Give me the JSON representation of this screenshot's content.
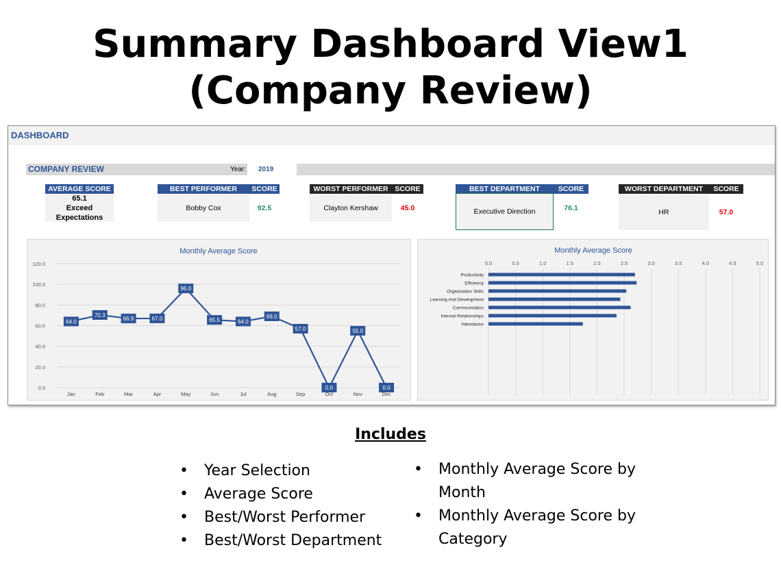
{
  "slide": {
    "title_line1": "Summary Dashboard View1",
    "title_line2": "(Company Review)"
  },
  "dashboard": {
    "title": "DASHBOARD",
    "section_title": "COMPANY REVIEW",
    "year_label": "Year:",
    "year_value": "2019",
    "kpis": {
      "average_score": {
        "label": "AVERAGE SCORE",
        "value": "65.1",
        "rating": "Exceed Expectations"
      },
      "best_performer": {
        "label": "BEST PERFORMER",
        "score_label": "SCORE",
        "name": "Bobby Cox",
        "score": "92.5"
      },
      "worst_performer": {
        "label": "WORST PERFORMER",
        "score_label": "SCORE",
        "name": "Clayton Kershaw",
        "score": "45.0"
      },
      "best_department": {
        "label": "BEST DEPARTMENT",
        "score_label": "SCORE",
        "name": "Executive Direction",
        "score": "76.1"
      },
      "worst_department": {
        "label": "WORST DEPARTMENT",
        "score_label": "SCORE",
        "name": "HR",
        "score": "57.0"
      }
    },
    "colors": {
      "accent": "#2f5597",
      "dark_header": "#262626",
      "good": "#1f8f6a",
      "bad": "#e00000",
      "panel": "#f2f2f2"
    }
  },
  "chart_data": [
    {
      "type": "line",
      "title": "Monthly Average Score",
      "categories": [
        "Jan",
        "Feb",
        "Mar",
        "Apr",
        "May",
        "Jun",
        "Jul",
        "Aug",
        "Sep",
        "Oct",
        "Nov",
        "Dec"
      ],
      "values": [
        64.0,
        70.3,
        66.9,
        67.0,
        96.0,
        65.5,
        64.0,
        69.0,
        57.0,
        0.0,
        55.0,
        0.0
      ],
      "value_labels": [
        "64.0",
        "70.3",
        "66.9",
        "67.0",
        "96.0",
        "65.5",
        "64.0",
        "69.0",
        "57.0",
        "0.0",
        "55.0",
        "0.0"
      ],
      "yticks": [
        "0.0",
        "20.0",
        "40.0",
        "60.0",
        "80.0",
        "100.0",
        "120.0"
      ],
      "ylim": [
        0,
        120
      ],
      "grid": true,
      "color": "#2f5597"
    },
    {
      "type": "bar",
      "orientation": "horizontal",
      "title": "Monthly Average Score",
      "categories": [
        "Productivity",
        "Efficiency",
        "Organization Skills",
        "Learning And Development",
        "Communication",
        "Internal Relationships",
        "Attendance"
      ],
      "values": [
        2.7,
        2.73,
        2.54,
        2.43,
        2.62,
        2.36,
        1.74
      ],
      "xticks": [
        "0.0",
        "0.5",
        "1.0",
        "1.5",
        "2.0",
        "2.5",
        "3.0",
        "3.5",
        "4.0",
        "4.5",
        "5.0"
      ],
      "xlim": [
        0,
        5
      ],
      "axis_position": "top",
      "grid": true,
      "color": "#2f5597"
    }
  ],
  "includes": {
    "heading": "Includes",
    "left": [
      "Year Selection",
      "Average Score",
      "Best/Worst Performer",
      "Best/Worst Department"
    ],
    "right": [
      "Monthly Average Score by Month",
      "Monthly Average Score by Category"
    ]
  }
}
